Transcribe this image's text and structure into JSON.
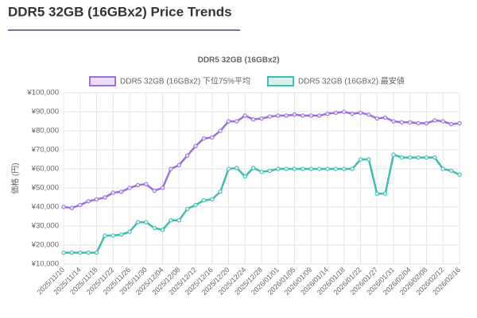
{
  "page": {
    "heading": "DDR5 32GB (16GBx2) Price Trends"
  },
  "chart_data": {
    "type": "line",
    "title": "DDR5 32GB (16GBx2)",
    "y_label": "価格 (円)",
    "grid": true,
    "legend": "top",
    "categories": [
      "2025/11/10",
      null,
      "2025/11/14",
      null,
      "2025/11/18",
      null,
      "2025/11/22",
      null,
      "2025/11/26",
      null,
      "2025/11/30",
      null,
      "2025/12/04",
      null,
      "2025/12/08",
      null,
      "2025/12/12",
      null,
      "2025/12/16",
      null,
      "2025/12/20",
      null,
      "2025/12/24",
      null,
      "2025/12/28",
      null,
      "2026/01/01",
      null,
      "2026/01/05",
      null,
      "2026/01/09",
      null,
      "2026/01/14",
      null,
      "2026/01/18",
      null,
      "2026/01/22",
      null,
      "2026/01/27",
      null,
      "2026/01/31",
      null,
      "2026/02/04",
      null,
      "2026/02/08",
      null,
      "2026/02/12",
      null,
      "2026/02/16"
    ],
    "series": [
      {
        "name": "DDR5 32GB (16GBx2) 下位75%平均",
        "color": "#9b6fe0",
        "fill": "#e9ddfb",
        "values": [
          40000,
          39500,
          41000,
          43000,
          44000,
          45000,
          47500,
          48000,
          50000,
          51500,
          52000,
          48500,
          50000,
          60000,
          62000,
          67000,
          72000,
          76000,
          76500,
          80000,
          85000,
          85000,
          88000,
          86000,
          86500,
          87500,
          88000,
          88000,
          88500,
          88000,
          88000,
          88000,
          89000,
          89500,
          90000,
          89000,
          89500,
          88500,
          86500,
          87000,
          85000,
          84500,
          84500,
          84000,
          84000,
          85500,
          85000,
          83500,
          84000
        ]
      },
      {
        "name": "DDR5 32GB (16GBx2) 最安値",
        "color": "#3dbdb3",
        "fill": "#d6f3f0",
        "values": [
          16000,
          16000,
          16000,
          16000,
          16000,
          25000,
          25000,
          25500,
          27000,
          32000,
          32000,
          29000,
          28000,
          33000,
          33000,
          39000,
          41000,
          43500,
          44000,
          48000,
          60000,
          60500,
          56000,
          60500,
          58500,
          59000,
          60000,
          60000,
          60000,
          60000,
          60000,
          60000,
          60000,
          60000,
          60000,
          60000,
          65000,
          65000,
          47000,
          47000,
          67500,
          66000,
          66000,
          66000,
          66000,
          66000,
          60000,
          59000,
          57000
        ]
      }
    ],
    "ylim": [
      10000,
      100000
    ],
    "yticks": [
      {
        "value": 10000,
        "label": "¥10,000"
      },
      {
        "value": 20000,
        "label": "¥20,000"
      },
      {
        "value": 30000,
        "label": "¥30,000"
      },
      {
        "value": 40000,
        "label": "¥40,000"
      },
      {
        "value": 50000,
        "label": "¥50,000"
      },
      {
        "value": 60000,
        "label": "¥60,000"
      },
      {
        "value": 70000,
        "label": "¥70,000"
      },
      {
        "value": 80000,
        "label": "¥80,000"
      },
      {
        "value": 90000,
        "label": "¥90,000"
      },
      {
        "value": 100000,
        "label": "¥100,000"
      }
    ]
  }
}
